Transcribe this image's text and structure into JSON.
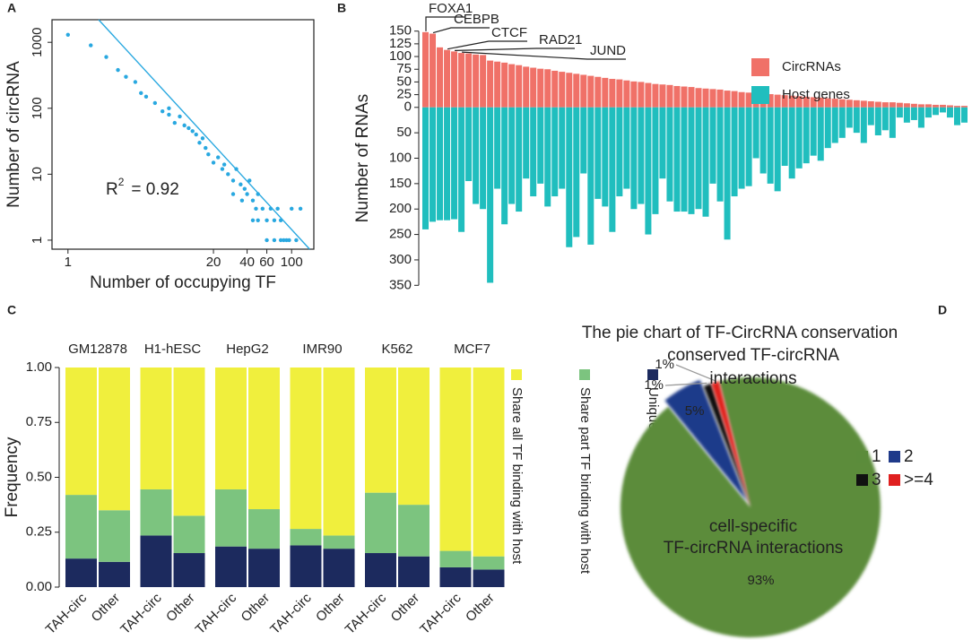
{
  "chart_data": [
    {
      "type": "scatter",
      "panel": "A",
      "xlabel": "Number of occupying TF",
      "ylabel": "Number of circRNA",
      "color": "#29a8e0",
      "log_x": true,
      "log_y": true,
      "xlim": [
        0.72,
        158
      ],
      "ylim": [
        0.73,
        2200
      ],
      "xticks": [
        1,
        20,
        40,
        60,
        100
      ],
      "yticks": [
        1,
        10,
        100,
        1000
      ],
      "x": [
        1,
        1.6,
        2.2,
        2.8,
        3.3,
        4,
        4.5,
        5,
        6,
        7,
        8,
        8,
        9,
        10,
        11,
        12,
        13,
        14,
        15,
        16,
        17,
        18,
        20,
        22,
        24,
        25,
        27,
        30,
        32,
        35,
        38,
        40,
        42,
        45,
        48,
        50,
        55,
        60,
        65,
        70,
        75,
        80,
        90,
        100,
        110,
        60,
        70,
        80,
        50,
        45,
        120,
        85,
        95,
        30,
        36
      ],
      "values": [
        1300,
        900,
        600,
        380,
        300,
        250,
        170,
        150,
        120,
        90,
        80,
        100,
        60,
        75,
        55,
        50,
        45,
        40,
        30,
        35,
        25,
        20,
        15,
        18,
        12,
        14,
        10,
        8,
        12,
        7,
        6,
        5,
        8,
        4,
        3,
        5,
        3,
        2,
        3,
        2,
        3,
        2,
        1,
        3,
        1,
        1,
        1,
        1,
        2,
        2,
        3,
        1,
        1,
        5,
        4
      ],
      "fit_line": {
        "color": "#29a8e0",
        "x": [
          1.88,
          145
        ],
        "values": [
          2200,
          0.73
        ]
      },
      "annotation": {
        "text": "R",
        "sup": "2",
        "rest": "= 0.92"
      }
    },
    {
      "type": "bar",
      "panel": "B",
      "ylabel": "Number of RNAs",
      "ylim": [
        -353,
        153
      ],
      "yticks": [
        150,
        125,
        100,
        75,
        50,
        25,
        0,
        {
          "value": -50,
          "label": "50"
        },
        {
          "value": -100,
          "label": "100"
        },
        {
          "value": -150,
          "label": "150"
        },
        {
          "value": -200,
          "label": "200"
        },
        {
          "value": -250,
          "label": "250"
        },
        {
          "value": -300,
          "label": "300"
        },
        {
          "value": -350,
          "label": "350"
        }
      ],
      "series": [
        {
          "name": "CircRNAs",
          "color": "#f07168",
          "values": [
            148,
            145,
            118,
            113,
            110,
            107,
            106,
            104,
            103,
            92,
            90,
            88,
            85,
            83,
            80,
            78,
            76,
            75,
            72,
            70,
            68,
            66,
            64,
            62,
            60,
            58,
            56,
            55,
            53,
            51,
            50,
            48,
            46,
            45,
            44,
            42,
            41,
            40,
            38,
            37,
            36,
            35,
            33,
            32,
            30,
            29,
            28,
            27,
            26,
            25,
            24,
            23,
            22,
            21,
            20,
            19,
            18,
            17,
            16,
            15,
            14,
            13,
            12,
            11,
            10,
            10,
            9,
            8,
            7,
            6,
            6,
            5,
            5,
            4,
            3,
            3
          ]
        },
        {
          "name": "Host genes",
          "color": "#20bebe",
          "values": [
            -240,
            -225,
            -222,
            -222,
            -220,
            -245,
            -145,
            -190,
            -200,
            -345,
            -160,
            -230,
            -190,
            -205,
            -140,
            -175,
            -150,
            -195,
            -175,
            -160,
            -275,
            -255,
            -130,
            -270,
            -180,
            -195,
            -245,
            -175,
            -160,
            -200,
            -190,
            -250,
            -210,
            -140,
            -185,
            -205,
            -205,
            -210,
            -200,
            -215,
            -150,
            -185,
            -260,
            -175,
            -160,
            -155,
            -100,
            -130,
            -150,
            -165,
            -115,
            -140,
            -120,
            -110,
            -95,
            -105,
            -80,
            -70,
            -60,
            -40,
            -50,
            -70,
            -35,
            -55,
            -45,
            -60,
            -20,
            -30,
            -25,
            -40,
            -20,
            -15,
            -10,
            -20,
            -35,
            -30
          ]
        }
      ],
      "annotations": [
        {
          "text": "FOXA1",
          "index": 0
        },
        {
          "text": "CEBPB",
          "index": 1
        },
        {
          "text": "CTCF",
          "index": 3
        },
        {
          "text": "RAD21",
          "index": 4
        },
        {
          "text": "JUND",
          "index": 5
        }
      ]
    },
    {
      "type": "stacked_bar",
      "panel": "C",
      "ylabel": "Frequency",
      "ylim": [
        0,
        1
      ],
      "yticks": [
        {
          "value": 0,
          "label": "0.00"
        },
        {
          "value": 0.25,
          "label": "0.25"
        },
        {
          "value": 0.5,
          "label": "0.50"
        },
        {
          "value": 0.75,
          "label": "0.75"
        },
        {
          "value": 1,
          "label": "1.00"
        }
      ],
      "groups": [
        "GM12878",
        "H1-hESC",
        "HepG2",
        "IMR90",
        "K562",
        "MCF7"
      ],
      "categories": [
        "TAH-circ",
        "Other",
        "TAH-circ",
        "Other",
        "TAH-circ",
        "Other",
        "TAH-circ",
        "Other",
        "TAH-circ",
        "Other",
        "TAH-circ",
        "Other"
      ],
      "series": [
        {
          "name": "Unique TF binding",
          "color": "#1c2a5e",
          "values": [
            0.13,
            0.115,
            0.235,
            0.155,
            0.185,
            0.175,
            0.19,
            0.175,
            0.155,
            0.14,
            0.09,
            0.08
          ]
        },
        {
          "name": "Share part TF binding with host",
          "color": "#7cc47f",
          "values": [
            0.29,
            0.235,
            0.21,
            0.17,
            0.26,
            0.18,
            0.075,
            0.06,
            0.275,
            0.235,
            0.075,
            0.06
          ]
        },
        {
          "name": "Share all TF binding with host",
          "color": "#f0ef3d",
          "values": [
            0.58,
            0.65,
            0.555,
            0.675,
            0.555,
            0.645,
            0.735,
            0.765,
            0.57,
            0.625,
            0.835,
            0.86
          ]
        }
      ]
    },
    {
      "type": "pie",
      "panel": "D",
      "title": "The pie chart of TF-CircRNA conservation",
      "labels": [
        "1",
        "2",
        "3",
        ">=4"
      ],
      "values": [
        93,
        5,
        1,
        1
      ],
      "value_labels": [
        "93%",
        "5%",
        "1%",
        "1%"
      ],
      "colors": [
        "#5b8c3b",
        "#1f3a8a",
        "#111111",
        "#e0201f"
      ],
      "annotations": {
        "conserved": [
          "conserved TF-circRNA",
          "interactions"
        ],
        "specific": [
          "cell-specific",
          "TF-circRNA interactions"
        ]
      }
    }
  ]
}
